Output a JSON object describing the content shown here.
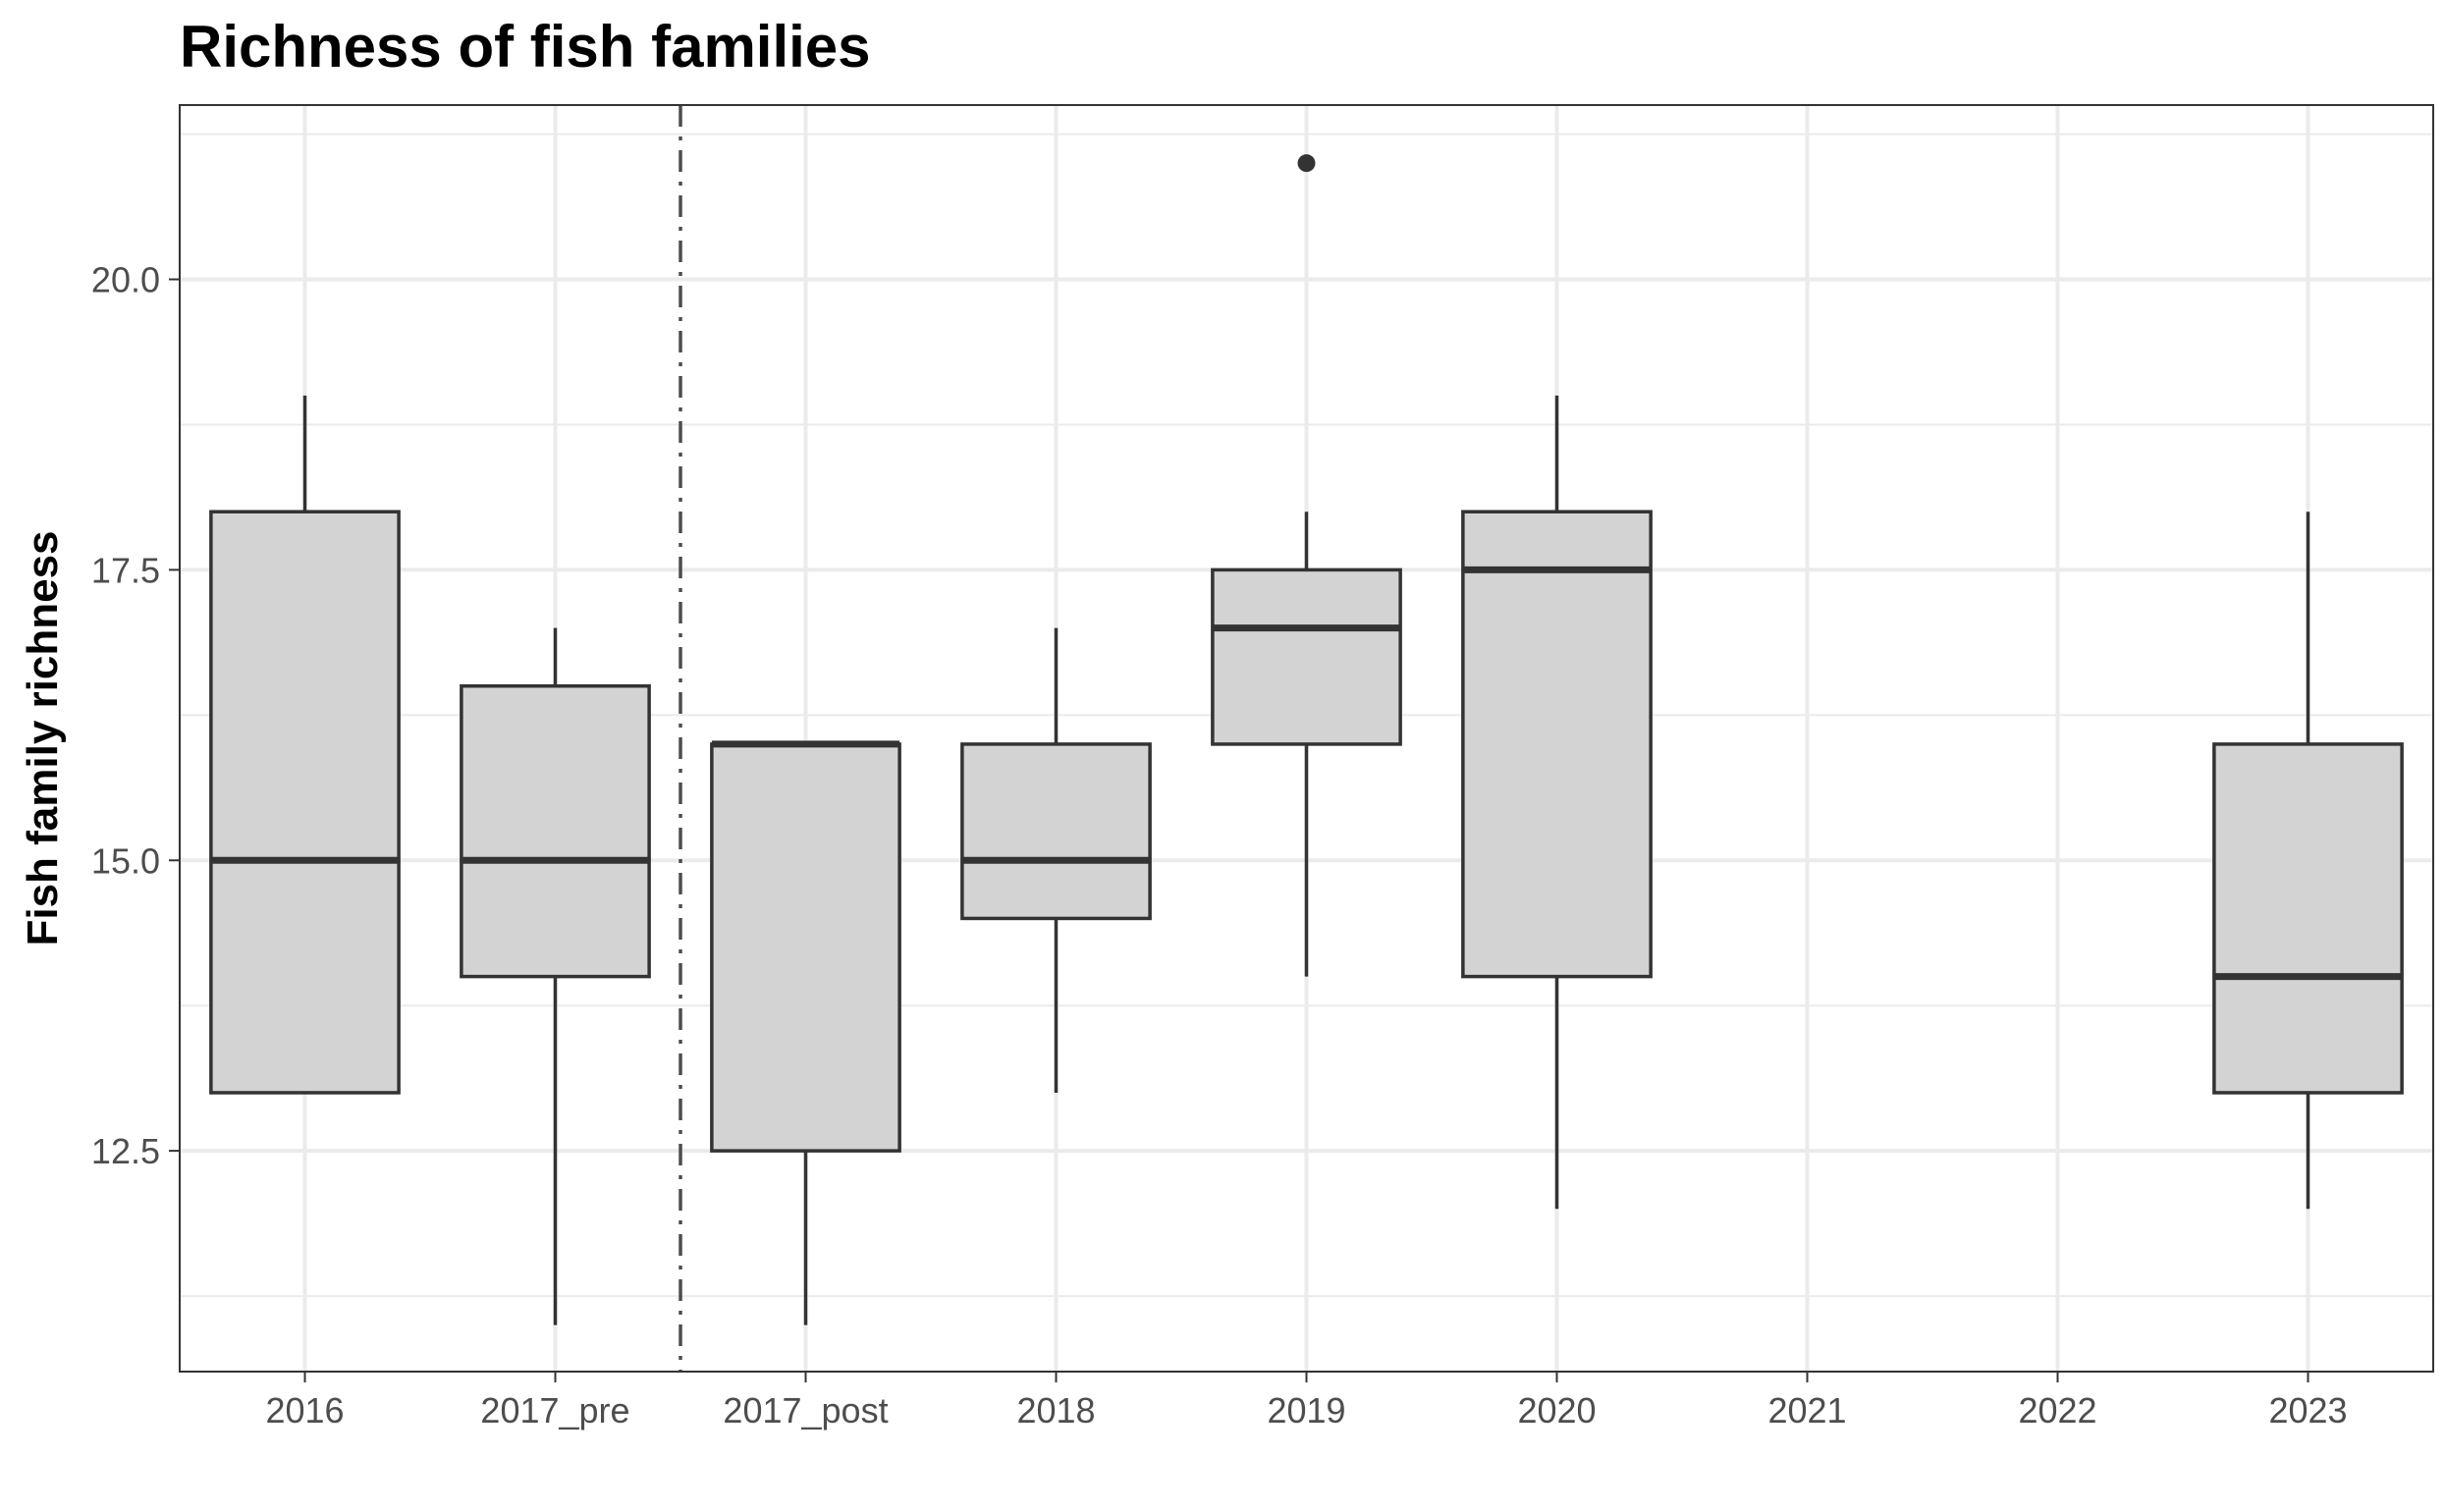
{
  "chart_data": {
    "type": "box",
    "title": "Richness of fish families",
    "xlabel": "",
    "ylabel": "Fish family richness",
    "categories": [
      "2016",
      "2017_pre",
      "2017_post",
      "2018",
      "2019",
      "2020",
      "2021",
      "2022",
      "2023"
    ],
    "boxes": [
      {
        "category": "2016",
        "whisker_low": 13,
        "q1": 13,
        "median": 15,
        "q3": 18,
        "whisker_high": 19,
        "outliers": []
      },
      {
        "category": "2017_pre",
        "whisker_low": 11,
        "q1": 14,
        "median": 15,
        "q3": 16.5,
        "whisker_high": 17,
        "outliers": []
      },
      {
        "category": "2017_post",
        "whisker_low": 11,
        "q1": 12.5,
        "median": 16,
        "q3": 16,
        "whisker_high": 16,
        "outliers": []
      },
      {
        "category": "2018",
        "whisker_low": 13,
        "q1": 14.5,
        "median": 15,
        "q3": 16,
        "whisker_high": 17,
        "outliers": []
      },
      {
        "category": "2019",
        "whisker_low": 14,
        "q1": 16,
        "median": 17,
        "q3": 17.5,
        "whisker_high": 18,
        "outliers": [
          21
        ]
      },
      {
        "category": "2020",
        "whisker_low": 12,
        "q1": 14,
        "median": 17.5,
        "q3": 18,
        "whisker_high": 19,
        "outliers": []
      },
      {
        "category": "2023",
        "whisker_low": 12,
        "q1": 13,
        "median": 14,
        "q3": 16,
        "whisker_high": 18,
        "outliers": []
      }
    ],
    "yticks": [
      "12.5",
      "15.0",
      "17.5",
      "20.0"
    ],
    "ylim": [
      10.6,
      21.5
    ],
    "reference_line": {
      "between": [
        "2017_pre",
        "2017_post"
      ],
      "style": "dashdot"
    },
    "grid": true,
    "legend": "none",
    "colors": {
      "box_fill": "#d3d3d3",
      "box_stroke": "#333333",
      "grid": "#ebebeb",
      "panel_border": "#333333",
      "tick_text": "#4d4d4d",
      "reference_line": "#4d4d4d"
    }
  }
}
